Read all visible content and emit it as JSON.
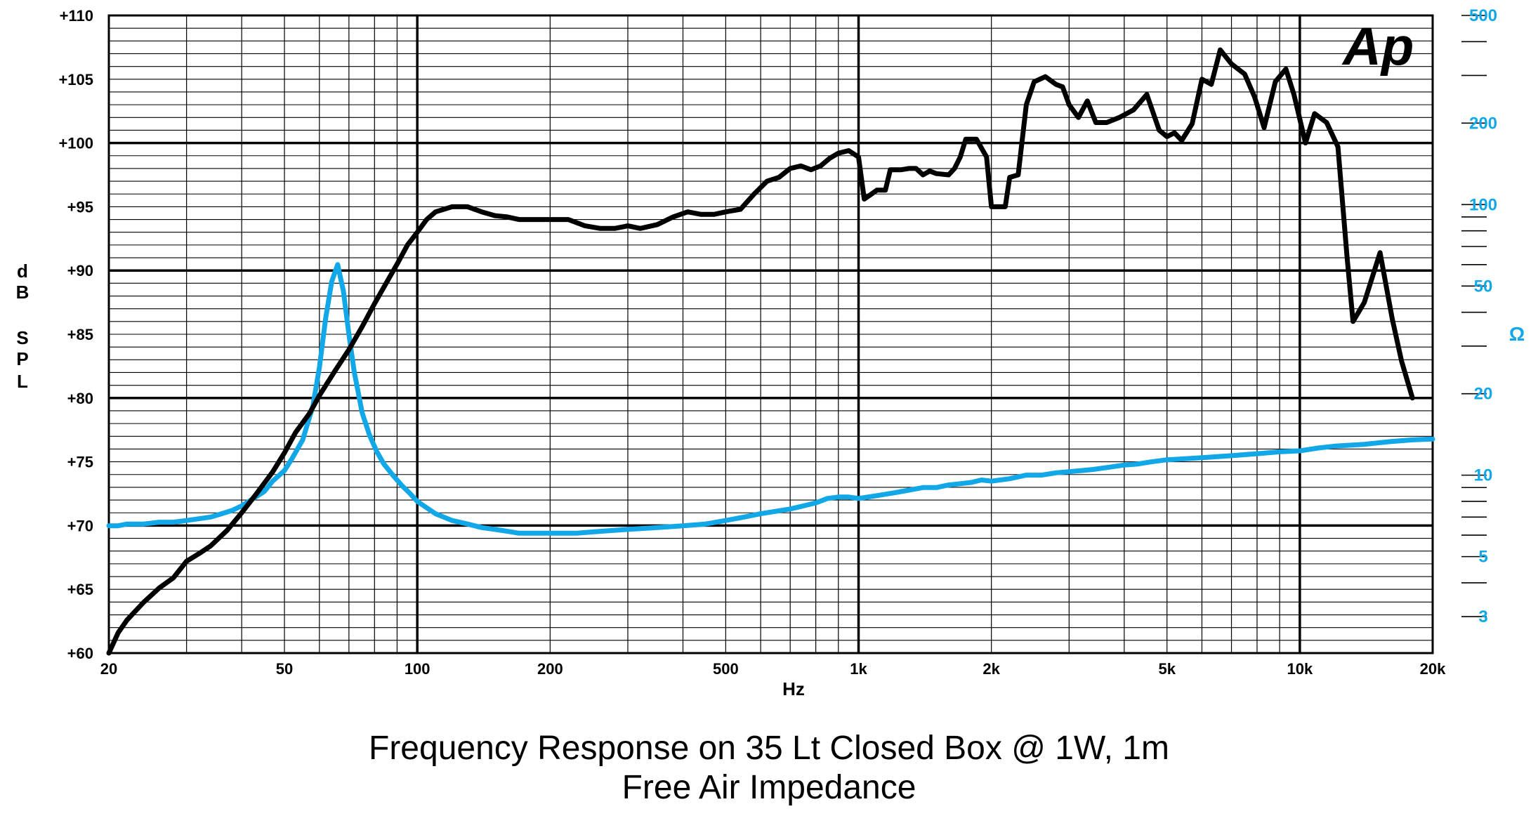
{
  "captions": {
    "line1": "Frequency Response on 35 Lt Closed Box @ 1W, 1m",
    "line2": "Free Air Impedance"
  },
  "logo_text": "Ap",
  "colors": {
    "spl": "#000000",
    "impedance": "#12A7E6",
    "grid": "#000000"
  },
  "chart_data": {
    "type": "line",
    "x_scale": "log",
    "xlim": [
      20,
      20000
    ],
    "grid": true,
    "xlabel": "Hz",
    "ylabel": "dB SPL",
    "y2label": "Ω",
    "ylim": [
      60,
      110
    ],
    "y2lim": [
      2.2,
      500
    ],
    "y2_scale": "log",
    "x_ticks": [
      {
        "value": 20,
        "label": "20"
      },
      {
        "value": 50,
        "label": "50"
      },
      {
        "value": 100,
        "label": "100"
      },
      {
        "value": 200,
        "label": "200"
      },
      {
        "value": 500,
        "label": "500"
      },
      {
        "value": 1000,
        "label": "1k"
      },
      {
        "value": 2000,
        "label": "2k"
      },
      {
        "value": 5000,
        "label": "5k"
      },
      {
        "value": 10000,
        "label": "10k"
      },
      {
        "value": 20000,
        "label": "20k"
      }
    ],
    "y_ticks": [
      {
        "value": 60,
        "label": "+60"
      },
      {
        "value": 65,
        "label": "+65"
      },
      {
        "value": 70,
        "label": "+70"
      },
      {
        "value": 75,
        "label": "+75"
      },
      {
        "value": 80,
        "label": "+80"
      },
      {
        "value": 85,
        "label": "+85"
      },
      {
        "value": 90,
        "label": "+90"
      },
      {
        "value": 95,
        "label": "+95"
      },
      {
        "value": 100,
        "label": "+100"
      },
      {
        "value": 105,
        "label": "+105"
      },
      {
        "value": 110,
        "label": "+110"
      }
    ],
    "y2_ticks": [
      {
        "value": 3,
        "label": "3"
      },
      {
        "value": 5,
        "label": "5"
      },
      {
        "value": 10,
        "label": "10"
      },
      {
        "value": 20,
        "label": "20"
      },
      {
        "value": 50,
        "label": "50"
      },
      {
        "value": 100,
        "label": "100"
      },
      {
        "value": 200,
        "label": "200"
      },
      {
        "value": 500,
        "label": "500"
      }
    ],
    "series": [
      {
        "axis": "left",
        "points": [
          [
            20,
            60
          ],
          [
            21,
            61.6
          ],
          [
            22,
            62.6
          ],
          [
            24,
            64
          ],
          [
            26,
            65.1
          ],
          [
            28,
            65.9
          ],
          [
            30,
            67.2
          ],
          [
            32,
            67.8
          ],
          [
            34,
            68.4
          ],
          [
            37,
            69.6
          ],
          [
            40,
            71.0
          ],
          [
            43,
            72.4
          ],
          [
            47,
            74.2
          ],
          [
            50,
            75.7
          ],
          [
            53,
            77.3
          ],
          [
            57,
            78.8
          ],
          [
            60,
            80.2
          ],
          [
            65,
            82.1
          ],
          [
            70,
            83.8
          ],
          [
            75,
            85.6
          ],
          [
            80,
            87.4
          ],
          [
            85,
            89.0
          ],
          [
            90,
            90.5
          ],
          [
            95,
            92.0
          ],
          [
            100,
            93.0
          ],
          [
            105,
            94.0
          ],
          [
            110,
            94.6
          ],
          [
            120,
            95.0
          ],
          [
            130,
            95.0
          ],
          [
            140,
            94.6
          ],
          [
            150,
            94.3
          ],
          [
            160,
            94.2
          ],
          [
            170,
            94.0
          ],
          [
            180,
            94.0
          ],
          [
            200,
            94.0
          ],
          [
            220,
            94.0
          ],
          [
            240,
            93.5
          ],
          [
            260,
            93.3
          ],
          [
            280,
            93.3
          ],
          [
            300,
            93.5
          ],
          [
            320,
            93.3
          ],
          [
            350,
            93.6
          ],
          [
            380,
            94.2
          ],
          [
            410,
            94.6
          ],
          [
            440,
            94.4
          ],
          [
            470,
            94.4
          ],
          [
            500,
            94.6
          ],
          [
            540,
            94.8
          ],
          [
            580,
            96.0
          ],
          [
            620,
            97.0
          ],
          [
            660,
            97.3
          ],
          [
            700,
            98.0
          ],
          [
            740,
            98.2
          ],
          [
            780,
            97.9
          ],
          [
            820,
            98.2
          ],
          [
            860,
            98.8
          ],
          [
            900,
            99.2
          ],
          [
            950,
            99.4
          ],
          [
            1000,
            98.9
          ],
          [
            1030,
            95.6
          ],
          [
            1070,
            96.0
          ],
          [
            1100,
            96.3
          ],
          [
            1150,
            96.3
          ],
          [
            1180,
            97.9
          ],
          [
            1250,
            97.9
          ],
          [
            1300,
            98.0
          ],
          [
            1350,
            98.0
          ],
          [
            1400,
            97.5
          ],
          [
            1450,
            97.8
          ],
          [
            1500,
            97.6
          ],
          [
            1600,
            97.5
          ],
          [
            1650,
            98.0
          ],
          [
            1700,
            98.9
          ],
          [
            1750,
            100.3
          ],
          [
            1850,
            100.3
          ],
          [
            1950,
            98.9
          ],
          [
            2000,
            95.0
          ],
          [
            2150,
            95.0
          ],
          [
            2200,
            97.3
          ],
          [
            2300,
            97.5
          ],
          [
            2400,
            103.0
          ],
          [
            2500,
            104.8
          ],
          [
            2650,
            105.2
          ],
          [
            2800,
            104.6
          ],
          [
            2900,
            104.4
          ],
          [
            3000,
            103.0
          ],
          [
            3150,
            102.0
          ],
          [
            3300,
            103.3
          ],
          [
            3450,
            101.6
          ],
          [
            3650,
            101.6
          ],
          [
            3900,
            102.0
          ],
          [
            4200,
            102.6
          ],
          [
            4500,
            103.8
          ],
          [
            4800,
            101.0
          ],
          [
            5000,
            100.5
          ],
          [
            5200,
            100.8
          ],
          [
            5400,
            100.2
          ],
          [
            5700,
            101.5
          ],
          [
            6000,
            105.0
          ],
          [
            6300,
            104.6
          ],
          [
            6600,
            107.3
          ],
          [
            7000,
            106.2
          ],
          [
            7500,
            105.4
          ],
          [
            7900,
            103.6
          ],
          [
            8300,
            101.2
          ],
          [
            8800,
            104.8
          ],
          [
            9300,
            105.8
          ],
          [
            9700,
            103.8
          ],
          [
            10300,
            100.0
          ],
          [
            10800,
            102.3
          ],
          [
            11500,
            101.6
          ],
          [
            12200,
            99.7
          ],
          [
            12800,
            91.0
          ],
          [
            13200,
            86.0
          ],
          [
            14000,
            87.5
          ],
          [
            15200,
            91.4
          ],
          [
            16200,
            86.2
          ],
          [
            17000,
            82.9
          ],
          [
            18000,
            80.0
          ]
        ]
      },
      {
        "axis": "right",
        "points": [
          [
            20,
            6.5
          ],
          [
            21,
            6.5
          ],
          [
            22,
            6.6
          ],
          [
            24,
            6.6
          ],
          [
            26,
            6.7
          ],
          [
            28,
            6.7
          ],
          [
            30,
            6.8
          ],
          [
            32,
            6.9
          ],
          [
            34,
            7.0
          ],
          [
            36,
            7.2
          ],
          [
            38,
            7.4
          ],
          [
            40,
            7.7
          ],
          [
            42,
            8.1
          ],
          [
            45,
            8.7
          ],
          [
            47,
            9.5
          ],
          [
            50,
            10.4
          ],
          [
            52,
            11.5
          ],
          [
            55,
            13.5
          ],
          [
            58,
            18
          ],
          [
            60,
            25
          ],
          [
            62,
            38
          ],
          [
            64,
            52
          ],
          [
            66,
            60
          ],
          [
            68,
            48
          ],
          [
            70,
            33
          ],
          [
            72,
            24
          ],
          [
            75,
            17
          ],
          [
            78,
            14
          ],
          [
            81,
            12.2
          ],
          [
            84,
            11
          ],
          [
            88,
            10
          ],
          [
            92,
            9.2
          ],
          [
            96,
            8.6
          ],
          [
            100,
            8.0
          ],
          [
            110,
            7.2
          ],
          [
            120,
            6.8
          ],
          [
            130,
            6.6
          ],
          [
            140,
            6.4
          ],
          [
            150,
            6.3
          ],
          [
            160,
            6.2
          ],
          [
            170,
            6.1
          ],
          [
            180,
            6.1
          ],
          [
            200,
            6.1
          ],
          [
            230,
            6.1
          ],
          [
            260,
            6.2
          ],
          [
            300,
            6.3
          ],
          [
            350,
            6.4
          ],
          [
            400,
            6.5
          ],
          [
            450,
            6.6
          ],
          [
            500,
            6.8
          ],
          [
            550,
            7.0
          ],
          [
            600,
            7.2
          ],
          [
            700,
            7.5
          ],
          [
            750,
            7.7
          ],
          [
            800,
            7.9
          ],
          [
            850,
            8.2
          ],
          [
            900,
            8.3
          ],
          [
            950,
            8.3
          ],
          [
            1000,
            8.2
          ],
          [
            1100,
            8.4
          ],
          [
            1200,
            8.6
          ],
          [
            1300,
            8.8
          ],
          [
            1400,
            9.0
          ],
          [
            1500,
            9.0
          ],
          [
            1600,
            9.2
          ],
          [
            1700,
            9.3
          ],
          [
            1800,
            9.4
          ],
          [
            1900,
            9.6
          ],
          [
            2000,
            9.5
          ],
          [
            2200,
            9.7
          ],
          [
            2400,
            10.0
          ],
          [
            2600,
            10.0
          ],
          [
            2800,
            10.2
          ],
          [
            3000,
            10.3
          ],
          [
            3200,
            10.4
          ],
          [
            3400,
            10.5
          ],
          [
            3700,
            10.7
          ],
          [
            4000,
            10.9
          ],
          [
            4300,
            11.0
          ],
          [
            4600,
            11.2
          ],
          [
            5000,
            11.4
          ],
          [
            5500,
            11.5
          ],
          [
            6000,
            11.6
          ],
          [
            7000,
            11.8
          ],
          [
            8000,
            12.0
          ],
          [
            9000,
            12.2
          ],
          [
            10000,
            12.3
          ],
          [
            11000,
            12.6
          ],
          [
            12000,
            12.8
          ],
          [
            14000,
            13.0
          ],
          [
            16000,
            13.3
          ],
          [
            18000,
            13.5
          ],
          [
            20000,
            13.6
          ]
        ]
      }
    ]
  }
}
